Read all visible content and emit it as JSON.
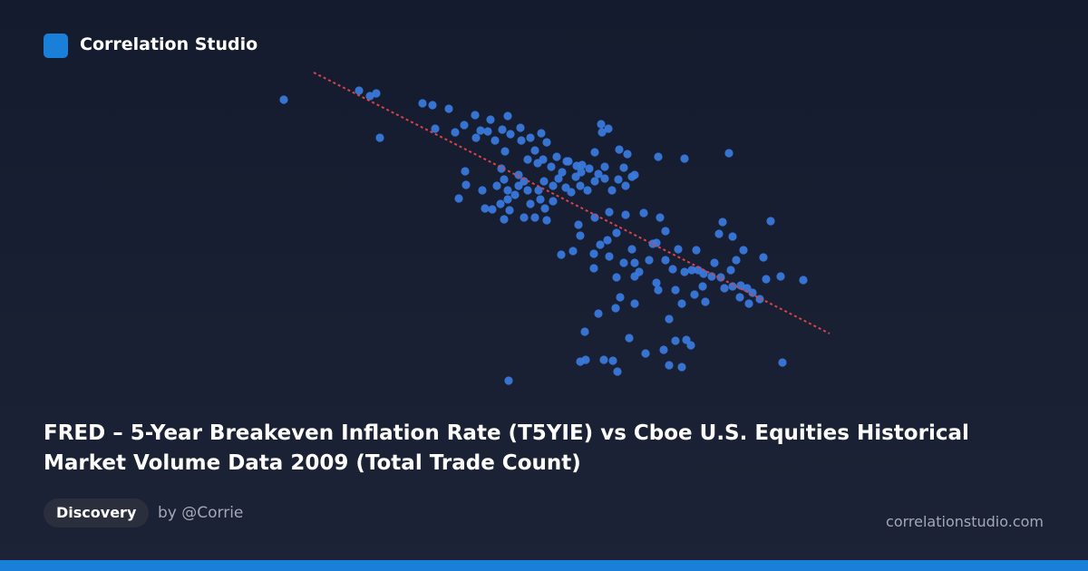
{
  "brand": "Correlation Studio",
  "tag": "Discovery",
  "author": "by @Corrie",
  "site": "correlationstudio.com",
  "chart_data": {
    "type": "scatter",
    "title": "FRED – 5-Year Breakeven Inflation Rate (T5YIE) vs Cboe U.S. Equities Historical Market Volume Data 2009 (Total Trade Count)",
    "color": "#3b7be0",
    "xlim": [
      0,
      630
    ],
    "ylim": [
      0,
      360
    ],
    "x": [
      13,
      96,
      108,
      115,
      119,
      166,
      177,
      195,
      180,
      202,
      212,
      224,
      225,
      230,
      241,
      238,
      246,
      254,
      260,
      257,
      263,
      274,
      275,
      285,
      297,
      303,
      290,
      282,
      293,
      299,
      308,
      314,
      327,
      336,
      341,
      350,
      360,
      367,
      356,
      364,
      363,
      371,
      383,
      392,
      388,
      400,
      426,
      455,
      504,
      213,
      214,
      206,
      232,
      235,
      243,
      248,
      253,
      256,
      260,
      262,
      256,
      268,
      272,
      278,
      282,
      285,
      278,
      290,
      296,
      301,
      303,
      300,
      310,
      316,
      324,
      330,
      335,
      340,
      348,
      356,
      367,
      375,
      390,
      397,
      382,
      320,
      325,
      342,
      310,
      294,
      272,
      260,
      252,
      338,
      340,
      356,
      372,
      390,
      410,
      428,
      434,
      424,
      380,
      370,
      362,
      355,
      332,
      319,
      355,
      372,
      388,
      397,
      400,
      405,
      416,
      420,
      434,
      442,
      448,
      455,
      463,
      468,
      476,
      488,
      493,
      497,
      508,
      520,
      512,
      506,
      495,
      475,
      466,
      478,
      452,
      445,
      424,
      426,
      400,
      380,
      384,
      400,
      360,
      379,
      438,
      457,
      462,
      445,
      432,
      412,
      394,
      345,
      340,
      346,
      366,
      376,
      381,
      438,
      452,
      261,
      563,
      586,
      561,
      545,
      542,
      550,
      538,
      530,
      517,
      524,
      516,
      526,
      508,
      499,
      485,
      470
    ],
    "y": [
      320,
      330,
      324,
      327,
      278,
      316,
      314,
      310,
      288,
      284,
      292,
      303,
      278,
      286,
      298,
      285,
      275,
      287,
      302,
      263,
      282,
      289,
      275,
      278,
      283,
      273,
      264,
      254,
      250,
      254,
      246,
      257,
      252,
      247,
      240,
      244,
      238,
      246,
      262,
      284,
      293,
      288,
      265,
      260,
      245,
      237,
      257,
      255,
      261,
      241,
      226,
      211,
      220,
      200,
      199,
      225,
      244,
      232,
      220,
      198,
      188,
      215,
      237,
      230,
      220,
      205,
      190,
      190,
      210,
      200,
      187,
      230,
      225,
      233,
      223,
      218,
      235,
      225,
      220,
      230,
      233,
      220,
      225,
      235,
      232,
      240,
      252,
      248,
      208,
      220,
      225,
      210,
      205,
      182,
      170,
      190,
      196,
      193,
      195,
      190,
      175,
      162,
      173,
      165,
      160,
      150,
      153,
      149,
      134,
      147,
      140,
      155,
      140,
      130,
      143,
      161,
      143,
      133,
      155,
      130,
      132,
      154,
      128,
      140,
      172,
      185,
      169,
      154,
      143,
      132,
      124,
      114,
      105,
      97,
      95,
      110,
      118,
      110,
      125,
      124,
      102,
      95,
      84,
      90,
      78,
      55,
      49,
      54,
      44,
      40,
      57,
      64,
      31,
      33,
      33,
      32,
      20,
      27,
      25,
      10,
      30,
      121,
      125,
      122,
      146,
      186,
      100,
      107,
      115,
      112,
      102,
      95,
      114,
      112,
      125,
      132
    ],
    "trendline": {
      "color": "#d9434a",
      "x": [
        46,
        615
      ],
      "y": [
        350,
        62
      ]
    }
  }
}
